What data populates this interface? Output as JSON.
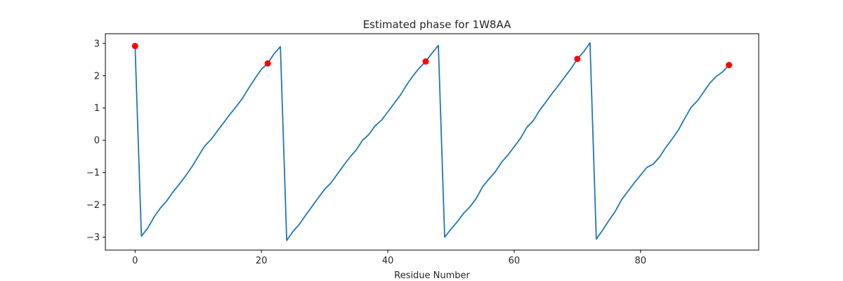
{
  "chart_data": {
    "type": "line",
    "title": "Estimated phase for 1W8AA",
    "xlabel": "Residue Number",
    "ylabel": "",
    "xlim": [
      -4.7,
      98.7
    ],
    "ylim": [
      -3.4,
      3.3
    ],
    "xticks": [
      0,
      20,
      40,
      60,
      80
    ],
    "yticks": [
      -3,
      -2,
      -1,
      0,
      1,
      2,
      3
    ],
    "grid": false,
    "line_color": "#1f77b4",
    "marker_color": "#ff0000",
    "series": [
      {
        "x": [
          0,
          1,
          2,
          3,
          4,
          5,
          6,
          7,
          8,
          9,
          10,
          11,
          12,
          13,
          14,
          15,
          16,
          17,
          18,
          19,
          20,
          21,
          22,
          23,
          24,
          25,
          26,
          27,
          28,
          29,
          30,
          31,
          32,
          33,
          34,
          35,
          36,
          37,
          38,
          39,
          40,
          41,
          42,
          43,
          44,
          45,
          46,
          47,
          48,
          49,
          50,
          51,
          52,
          53,
          54,
          55,
          56,
          57,
          58,
          59,
          60,
          61,
          62,
          63,
          64,
          65,
          66,
          67,
          68,
          69,
          70,
          71,
          72,
          73,
          74,
          75,
          76,
          77,
          78,
          79,
          80,
          81,
          82,
          83,
          84,
          85,
          86,
          87,
          88,
          89,
          90,
          91,
          92,
          93,
          94
        ],
        "y": [
          2.92,
          -2.97,
          -2.72,
          -2.38,
          -2.1,
          -1.88,
          -1.6,
          -1.36,
          -1.1,
          -0.82,
          -0.5,
          -0.18,
          0.02,
          0.28,
          0.54,
          0.8,
          1.04,
          1.3,
          1.62,
          1.92,
          2.2,
          2.38,
          2.68,
          2.9,
          -3.1,
          -2.82,
          -2.6,
          -2.32,
          -2.05,
          -1.78,
          -1.52,
          -1.32,
          -1.05,
          -0.78,
          -0.52,
          -0.3,
          0.0,
          0.18,
          0.45,
          0.62,
          0.88,
          1.14,
          1.4,
          1.72,
          2.0,
          2.24,
          2.44,
          2.7,
          2.94,
          -3.0,
          -2.75,
          -2.52,
          -2.26,
          -2.06,
          -1.8,
          -1.44,
          -1.2,
          -0.98,
          -0.68,
          -0.46,
          -0.2,
          0.06,
          0.4,
          0.6,
          0.92,
          1.18,
          1.45,
          1.7,
          1.96,
          2.22,
          2.52,
          2.74,
          3.02,
          -3.06,
          -2.78,
          -2.48,
          -2.2,
          -1.84,
          -1.58,
          -1.32,
          -1.08,
          -0.84,
          -0.74,
          -0.52,
          -0.22,
          0.04,
          0.32,
          0.68,
          1.02,
          1.22,
          1.5,
          1.78,
          1.98,
          2.12,
          2.33
        ]
      }
    ],
    "markers": {
      "x": [
        0,
        21,
        46,
        70,
        94
      ],
      "y": [
        2.92,
        2.38,
        2.44,
        2.52,
        2.33
      ]
    }
  }
}
